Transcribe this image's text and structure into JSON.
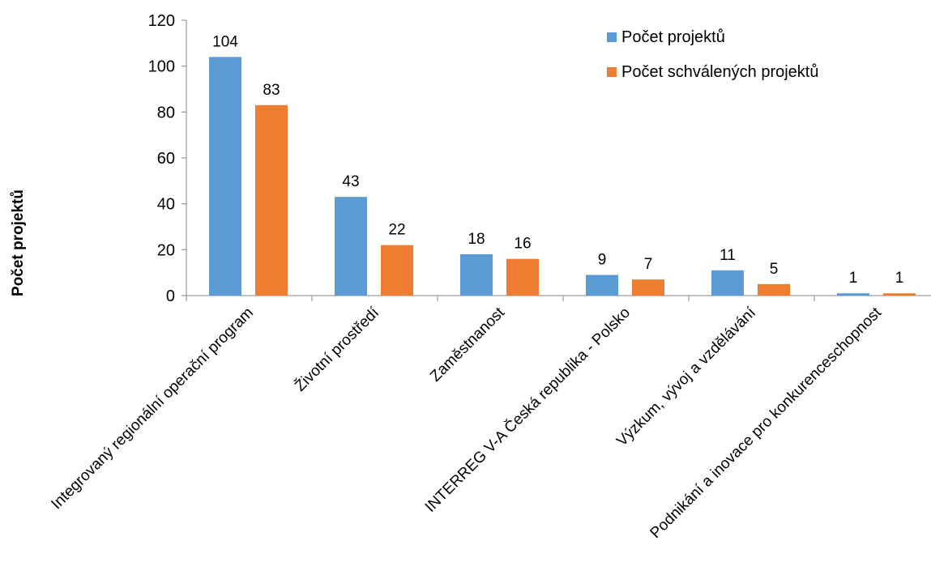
{
  "chart_data": {
    "type": "bar",
    "ylabel": "Počet projektů",
    "xlabel": "",
    "ylim": [
      0,
      120
    ],
    "yticks": [
      0,
      20,
      40,
      60,
      80,
      100,
      120
    ],
    "grid": false,
    "legend_position": "top-right",
    "categories": [
      "Integrovaný regionální operační program",
      "Životní prostředí",
      "Zaměstnanost",
      "INTERREG V-A Česká republika - Polsko",
      "Výzkum, vývoj a vzdělávání",
      "Podnikání a inovace pro konkurenceschopnost"
    ],
    "series": [
      {
        "name": "Počet projektů",
        "color": "#5B9BD5",
        "values": [
          104,
          43,
          18,
          9,
          11,
          1
        ]
      },
      {
        "name": "Počet schválených projektů",
        "color": "#ED7D31",
        "values": [
          83,
          22,
          16,
          7,
          5,
          1
        ]
      }
    ]
  }
}
